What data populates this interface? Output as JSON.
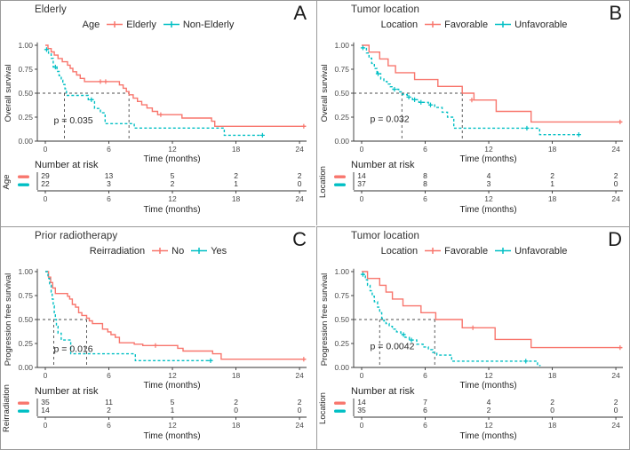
{
  "figure": {
    "background": "#ffffff",
    "border_color": "#9a9a9a",
    "axis_color": "#333333",
    "tick_text_color": "#4d4d4d",
    "text_color": "#262626",
    "dashed_line_color": "#4d4d4d",
    "series_colors": {
      "group1": "#F8766D",
      "group2": "#00BFC4"
    }
  },
  "chart_data": [
    {
      "type": "line",
      "subtype": "kaplan-meier",
      "letter": "A",
      "title": "Elderly",
      "legend_title": "Age",
      "ylabel": "Overall survival",
      "xlabel": "Time (months)",
      "xlim": [
        0,
        25
      ],
      "ylim": [
        0,
        1.05
      ],
      "xticks": [
        0,
        6,
        12,
        18,
        24
      ],
      "ytick_values": [
        0,
        0.25,
        0.5,
        0.75,
        1
      ],
      "ytick_labels": [
        "0.00",
        "0.25",
        "0.50",
        "0.75",
        "1.00"
      ],
      "grid": false,
      "legend_position": "top",
      "p_label": "p = 0.035",
      "p_pos": [
        0.8,
        0.185
      ],
      "median_x": [
        1.8,
        7.9
      ],
      "risk_header": "Number at risk",
      "risk_axis_label": "Age",
      "series": [
        {
          "name": "Elderly",
          "color": "#F8766D",
          "dash": false,
          "risk": [
            29,
            13,
            5,
            2,
            2
          ],
          "steps": [
            [
              0,
              1
            ],
            [
              0.25,
              0.966
            ],
            [
              0.55,
              0.931
            ],
            [
              0.85,
              0.897
            ],
            [
              1.2,
              0.862
            ],
            [
              1.6,
              0.828
            ],
            [
              2.1,
              0.793
            ],
            [
              2.35,
              0.759
            ],
            [
              2.6,
              0.724
            ],
            [
              2.95,
              0.69
            ],
            [
              3.3,
              0.655
            ],
            [
              3.7,
              0.621
            ],
            [
              7.0,
              0.586
            ],
            [
              7.35,
              0.552
            ],
            [
              7.65,
              0.517
            ],
            [
              7.9,
              0.483
            ],
            [
              8.3,
              0.448
            ],
            [
              8.7,
              0.414
            ],
            [
              9.1,
              0.379
            ],
            [
              9.6,
              0.345
            ],
            [
              10.1,
              0.31
            ],
            [
              10.6,
              0.276
            ],
            [
              12.9,
              0.241
            ],
            [
              15.7,
              0.207
            ],
            [
              16.0,
              0.155
            ],
            [
              24.6,
              0.155
            ]
          ],
          "censors": [
            [
              5.2,
              0.621
            ],
            [
              5.7,
              0.621
            ],
            [
              10.9,
              0.276
            ],
            [
              24.4,
              0.155
            ]
          ]
        },
        {
          "name": "Non-Elderly",
          "color": "#00BFC4",
          "dash": true,
          "risk": [
            22,
            3,
            2,
            1,
            0
          ],
          "steps": [
            [
              0,
              0.955
            ],
            [
              0.3,
              0.909
            ],
            [
              0.55,
              0.864
            ],
            [
              0.75,
              0.773
            ],
            [
              1.1,
              0.727
            ],
            [
              1.3,
              0.682
            ],
            [
              1.5,
              0.636
            ],
            [
              1.65,
              0.591
            ],
            [
              1.85,
              0.545
            ],
            [
              2.0,
              0.477
            ],
            [
              4.05,
              0.432
            ],
            [
              4.65,
              0.341
            ],
            [
              5.2,
              0.295
            ],
            [
              5.65,
              0.182
            ],
            [
              8.4,
              0.136
            ],
            [
              16.9,
              0.061
            ],
            [
              20.6,
              0.061
            ]
          ],
          "censors": [
            [
              0.12,
              0.955
            ],
            [
              0.95,
              0.773
            ],
            [
              4.35,
              0.432
            ],
            [
              20.5,
              0.061
            ]
          ]
        }
      ]
    },
    {
      "type": "line",
      "subtype": "kaplan-meier",
      "letter": "B",
      "title": "Tumor location",
      "legend_title": "Location",
      "ylabel": "Overall survival",
      "xlabel": "Time (months)",
      "xlim": [
        0,
        25
      ],
      "ylim": [
        0,
        1.05
      ],
      "xticks": [
        0,
        6,
        12,
        18,
        24
      ],
      "ytick_values": [
        0,
        0.25,
        0.5,
        0.75,
        1
      ],
      "ytick_labels": [
        "0.00",
        "0.25",
        "0.50",
        "0.75",
        "1.00"
      ],
      "grid": false,
      "legend_position": "top",
      "p_label": "p = 0.032",
      "p_pos": [
        0.8,
        0.2
      ],
      "median_x": [
        3.8,
        9.5
      ],
      "risk_header": "Number at risk",
      "risk_axis_label": "Location",
      "series": [
        {
          "name": "Favorable",
          "color": "#F8766D",
          "dash": false,
          "risk": [
            14,
            8,
            4,
            2,
            2
          ],
          "steps": [
            [
              0,
              1
            ],
            [
              0.7,
              0.929
            ],
            [
              1.7,
              0.857
            ],
            [
              2.5,
              0.786
            ],
            [
              3.2,
              0.714
            ],
            [
              5.0,
              0.643
            ],
            [
              7.2,
              0.571
            ],
            [
              9.5,
              0.5
            ],
            [
              10.6,
              0.429
            ],
            [
              12.7,
              0.31
            ],
            [
              16.0,
              0.2
            ],
            [
              24.6,
              0.2
            ]
          ],
          "censors": [
            [
              10.4,
              0.429
            ],
            [
              24.4,
              0.2
            ]
          ]
        },
        {
          "name": "Unfavorable",
          "color": "#00BFC4",
          "dash": true,
          "risk": [
            37,
            8,
            3,
            1,
            0
          ],
          "steps": [
            [
              0,
              0.973
            ],
            [
              0.45,
              0.919
            ],
            [
              0.7,
              0.865
            ],
            [
              0.95,
              0.811
            ],
            [
              1.2,
              0.757
            ],
            [
              1.45,
              0.703
            ],
            [
              1.8,
              0.649
            ],
            [
              2.1,
              0.622
            ],
            [
              2.4,
              0.595
            ],
            [
              2.7,
              0.568
            ],
            [
              2.95,
              0.541
            ],
            [
              3.5,
              0.514
            ],
            [
              3.85,
              0.486
            ],
            [
              4.3,
              0.459
            ],
            [
              4.8,
              0.432
            ],
            [
              5.4,
              0.405
            ],
            [
              6.3,
              0.378
            ],
            [
              6.9,
              0.351
            ],
            [
              7.6,
              0.302
            ],
            [
              8.1,
              0.25
            ],
            [
              8.7,
              0.135
            ],
            [
              16.8,
              0.068
            ],
            [
              20.6,
              0.068
            ]
          ],
          "censors": [
            [
              0.12,
              0.973
            ],
            [
              1.55,
              0.703
            ],
            [
              3.1,
              0.541
            ],
            [
              4.45,
              0.459
            ],
            [
              5.0,
              0.432
            ],
            [
              5.6,
              0.405
            ],
            [
              6.5,
              0.378
            ],
            [
              15.6,
              0.135
            ],
            [
              20.5,
              0.068
            ]
          ]
        }
      ]
    },
    {
      "type": "line",
      "subtype": "kaplan-meier",
      "letter": "C",
      "title": "Prior radiotherapy",
      "legend_title": "Reirradiation",
      "ylabel": "Progression free survival",
      "xlabel": "Time (months)",
      "xlim": [
        0,
        25
      ],
      "ylim": [
        0,
        1.05
      ],
      "xticks": [
        0,
        6,
        12,
        18,
        24
      ],
      "ytick_values": [
        0,
        0.25,
        0.5,
        0.75,
        1
      ],
      "ytick_labels": [
        "0.00",
        "0.25",
        "0.50",
        "0.75",
        "1.00"
      ],
      "grid": false,
      "legend_position": "top",
      "p_label": "p = 0.016",
      "p_pos": [
        0.8,
        0.16
      ],
      "median_x": [
        0.8,
        3.9
      ],
      "risk_header": "Number at risk",
      "risk_axis_label": "Reirradiation",
      "series": [
        {
          "name": "No",
          "color": "#F8766D",
          "dash": false,
          "risk": [
            35,
            11,
            5,
            2,
            2
          ],
          "steps": [
            [
              0,
              1
            ],
            [
              0.3,
              0.943
            ],
            [
              0.5,
              0.886
            ],
            [
              0.7,
              0.829
            ],
            [
              0.95,
              0.771
            ],
            [
              2.1,
              0.743
            ],
            [
              2.3,
              0.714
            ],
            [
              2.55,
              0.657
            ],
            [
              2.85,
              0.629
            ],
            [
              3.15,
              0.571
            ],
            [
              3.45,
              0.543
            ],
            [
              3.9,
              0.514
            ],
            [
              4.15,
              0.486
            ],
            [
              4.45,
              0.457
            ],
            [
              5.4,
              0.4
            ],
            [
              5.9,
              0.371
            ],
            [
              6.2,
              0.343
            ],
            [
              6.6,
              0.314
            ],
            [
              7.0,
              0.257
            ],
            [
              8.4,
              0.243
            ],
            [
              9.2,
              0.229
            ],
            [
              12.5,
              0.2
            ],
            [
              13.0,
              0.171
            ],
            [
              15.8,
              0.143
            ],
            [
              16.6,
              0.086
            ],
            [
              24.6,
              0.086
            ]
          ],
          "censors": [
            [
              10.4,
              0.229
            ],
            [
              24.4,
              0.086
            ]
          ]
        },
        {
          "name": "Yes",
          "color": "#00BFC4",
          "dash": true,
          "risk": [
            14,
            2,
            1,
            0,
            0
          ],
          "steps": [
            [
              0,
              1
            ],
            [
              0.25,
              0.929
            ],
            [
              0.4,
              0.857
            ],
            [
              0.55,
              0.786
            ],
            [
              0.65,
              0.714
            ],
            [
              0.75,
              0.643
            ],
            [
              0.85,
              0.571
            ],
            [
              0.95,
              0.5
            ],
            [
              1.05,
              0.429
            ],
            [
              1.2,
              0.357
            ],
            [
              1.5,
              0.286
            ],
            [
              2.4,
              0.143
            ],
            [
              8.5,
              0.071
            ],
            [
              15.8,
              0.071
            ]
          ],
          "censors": [
            [
              15.6,
              0.071
            ]
          ]
        }
      ]
    },
    {
      "type": "line",
      "subtype": "kaplan-meier",
      "letter": "D",
      "title": "Tumor location",
      "legend_title": "Location",
      "ylabel": "Progression free survival",
      "xlabel": "Time (months)",
      "xlim": [
        0,
        25
      ],
      "ylim": [
        0,
        1.05
      ],
      "xticks": [
        0,
        6,
        12,
        18,
        24
      ],
      "ytick_values": [
        0,
        0.25,
        0.5,
        0.75,
        1
      ],
      "ytick_labels": [
        "0.00",
        "0.25",
        "0.50",
        "0.75",
        "1.00"
      ],
      "grid": false,
      "legend_position": "top",
      "p_label": "p = 0.0042",
      "p_pos": [
        0.8,
        0.19
      ],
      "median_x": [
        1.7,
        6.9
      ],
      "risk_header": "Number at risk",
      "risk_axis_label": "Location",
      "series": [
        {
          "name": "Favorable",
          "color": "#F8766D",
          "dash": false,
          "risk": [
            14,
            7,
            4,
            2,
            2
          ],
          "steps": [
            [
              0,
              1
            ],
            [
              0.55,
              0.929
            ],
            [
              1.7,
              0.857
            ],
            [
              2.3,
              0.786
            ],
            [
              2.9,
              0.714
            ],
            [
              3.9,
              0.643
            ],
            [
              5.6,
              0.571
            ],
            [
              7.0,
              0.5
            ],
            [
              9.5,
              0.414
            ],
            [
              12.6,
              0.293
            ],
            [
              16.0,
              0.207
            ],
            [
              24.6,
              0.207
            ]
          ],
          "censors": [
            [
              10.5,
              0.414
            ],
            [
              24.4,
              0.207
            ]
          ]
        },
        {
          "name": "Unfavorable",
          "color": "#00BFC4",
          "dash": true,
          "risk": [
            35,
            6,
            2,
            0,
            0
          ],
          "steps": [
            [
              0,
              0.971
            ],
            [
              0.35,
              0.914
            ],
            [
              0.55,
              0.857
            ],
            [
              0.8,
              0.8
            ],
            [
              1.0,
              0.743
            ],
            [
              1.2,
              0.686
            ],
            [
              1.5,
              0.629
            ],
            [
              1.7,
              0.571
            ],
            [
              1.9,
              0.514
            ],
            [
              2.1,
              0.486
            ],
            [
              2.3,
              0.457
            ],
            [
              2.6,
              0.429
            ],
            [
              2.9,
              0.4
            ],
            [
              3.3,
              0.371
            ],
            [
              3.7,
              0.343
            ],
            [
              4.1,
              0.314
            ],
            [
              4.5,
              0.286
            ],
            [
              5.2,
              0.243
            ],
            [
              5.8,
              0.214
            ],
            [
              6.3,
              0.186
            ],
            [
              6.7,
              0.157
            ],
            [
              7.1,
              0.129
            ],
            [
              8.5,
              0.066
            ],
            [
              16.6,
              0.02
            ],
            [
              16.9,
              0.02
            ]
          ],
          "censors": [
            [
              0.12,
              0.971
            ],
            [
              3.95,
              0.343
            ],
            [
              4.7,
              0.286
            ],
            [
              15.5,
              0.066
            ]
          ]
        }
      ]
    }
  ]
}
